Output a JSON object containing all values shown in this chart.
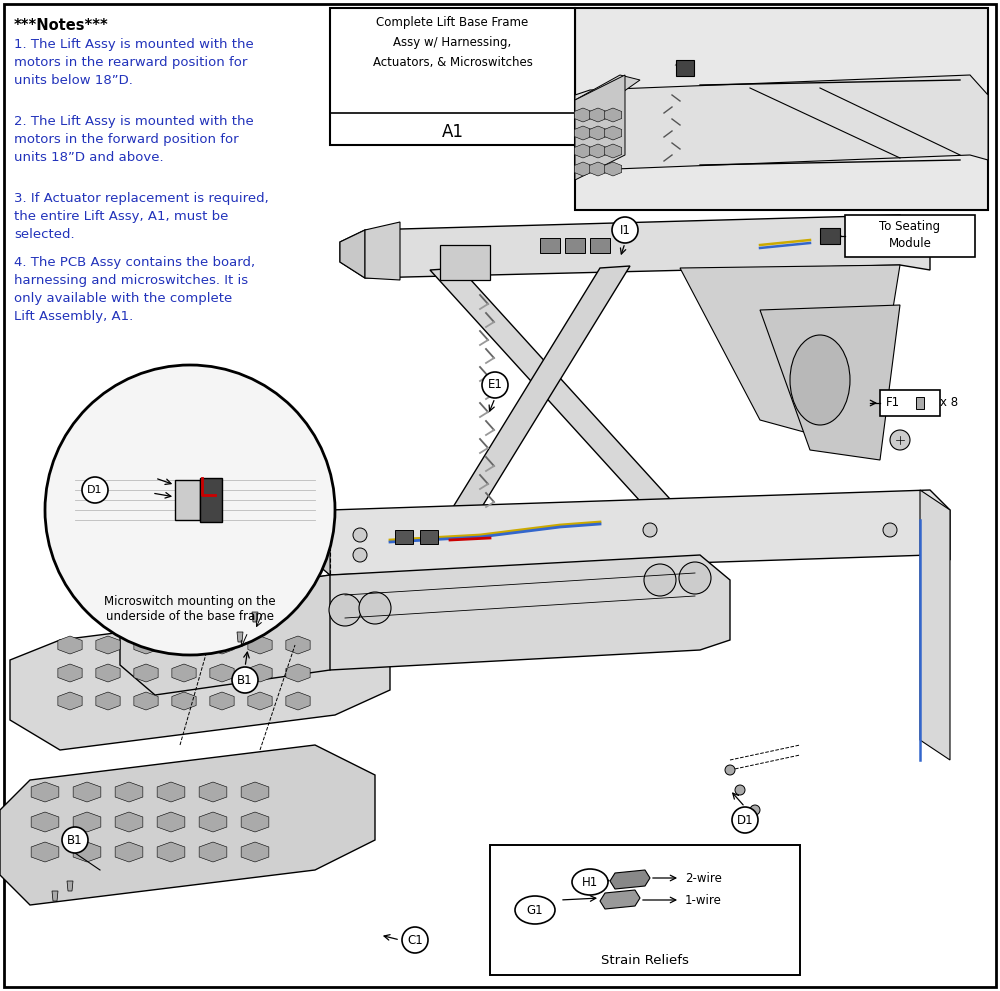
{
  "bg_color": "#ffffff",
  "black": "#000000",
  "blue": "#2233bb",
  "gray_light": "#e8e8e8",
  "gray_mid": "#cccccc",
  "gray_dark": "#999999",
  "red": "#cc0000",
  "yellow": "#ccaa00",
  "blue_wire": "#3366cc",
  "notes_header": "***Notes***",
  "note1": "1. The Lift Assy is mounted with the\nmotors in the rearward position for\nunits below 18”D.",
  "note2": "2. The Lift Assy is mounted with the\nmotors in the forward position for\nunits 18”D and above.",
  "note3": "3. If Actuator replacement is required,\nthe entire Lift Assy, A1, must be\nselected.",
  "note4": "4. The PCB Assy contains the board,\nharnessing and microswitches. It is\nonly available with the complete\nLift Assembly, A1.",
  "box_title_line1": "Complete Lift Base Frame",
  "box_title_line2": "Assy w/ Harnessing,",
  "box_title_line3": "Actuators, & Microswitches",
  "box_part": "A1",
  "microswitch_line1": "Microswitch mounting on the",
  "microswitch_line2": "underside of the base frame",
  "to_seating": "To Seating\nModule",
  "strain_title": "Strain Reliefs",
  "wire2": "2-wire",
  "wire1": "1-wire",
  "f1x8": "x 8",
  "figsize": [
    10.0,
    9.91
  ],
  "dpi": 100
}
